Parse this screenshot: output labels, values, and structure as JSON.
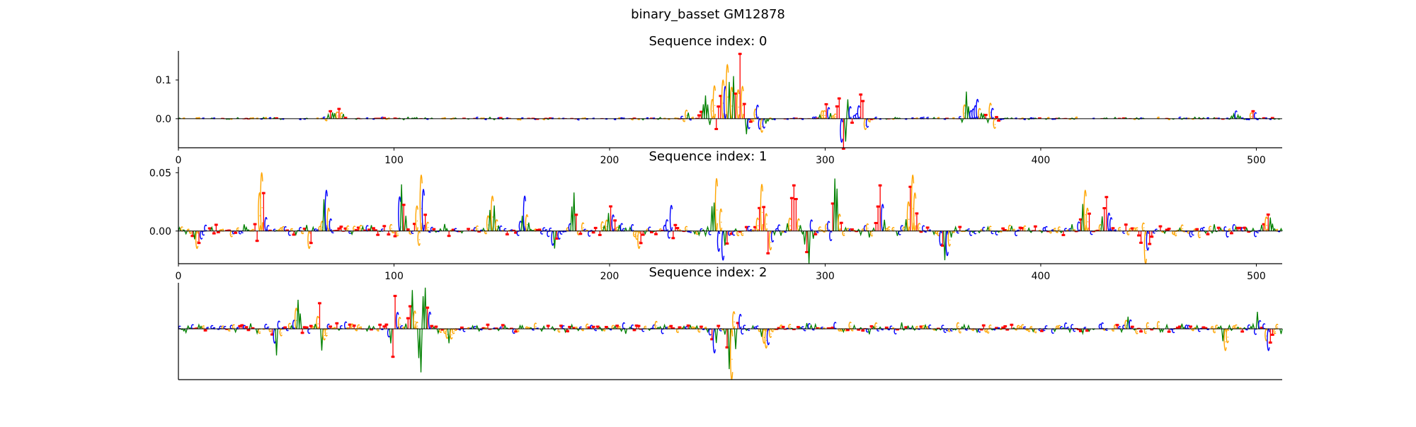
{
  "figure": {
    "title": "binary_basset GM12878"
  },
  "chart_data": [
    {
      "type": "bar",
      "title": "Sequence index: 0",
      "xlabel": "",
      "ylabel": "",
      "xlim": [
        0,
        512
      ],
      "ylim": [
        -0.075,
        0.175
      ],
      "xticks": [
        0,
        100,
        200,
        300,
        400,
        500
      ],
      "yticks": [
        0.0,
        0.1
      ],
      "ytick_labels": [
        "0.0",
        "0.1"
      ],
      "show_x_tick_labels": true,
      "grid": false,
      "peaks": [
        {
          "x": 70,
          "h": 0.022
        },
        {
          "x": 74,
          "h": 0.028
        },
        {
          "x": 235,
          "h": 0.022
        },
        {
          "x": 244,
          "h": 0.06
        },
        {
          "x": 248,
          "h": 0.085
        },
        {
          "x": 252,
          "h": 0.1
        },
        {
          "x": 254,
          "h": 0.14
        },
        {
          "x": 257,
          "h": 0.11
        },
        {
          "x": 260,
          "h": 0.17
        },
        {
          "x": 263,
          "h": -0.04
        },
        {
          "x": 268,
          "h": 0.035
        },
        {
          "x": 270,
          "h": -0.035
        },
        {
          "x": 300,
          "h": 0.04
        },
        {
          "x": 306,
          "h": 0.055
        },
        {
          "x": 308,
          "h": -0.08
        },
        {
          "x": 310,
          "h": 0.05
        },
        {
          "x": 316,
          "h": 0.065
        },
        {
          "x": 318,
          "h": -0.028
        },
        {
          "x": 365,
          "h": 0.07
        },
        {
          "x": 370,
          "h": 0.05
        },
        {
          "x": 376,
          "h": 0.04
        },
        {
          "x": 378,
          "h": -0.025
        },
        {
          "x": 490,
          "h": 0.02
        },
        {
          "x": 498,
          "h": 0.022
        }
      ]
    },
    {
      "type": "bar",
      "title": "Sequence index: 1",
      "xlabel": "",
      "ylabel": "",
      "xlim": [
        0,
        512
      ],
      "ylim": [
        -0.028,
        0.055
      ],
      "xticks": [
        0,
        100,
        200,
        300,
        400,
        500
      ],
      "yticks": [
        0.0,
        0.05
      ],
      "ytick_labels": [
        "0.00",
        "0.05"
      ],
      "show_x_tick_labels": true,
      "grid": false,
      "peaks": [
        {
          "x": 8,
          "h": -0.015
        },
        {
          "x": 38,
          "h": 0.05
        },
        {
          "x": 60,
          "h": -0.015
        },
        {
          "x": 68,
          "h": 0.035
        },
        {
          "x": 103,
          "h": 0.04
        },
        {
          "x": 112,
          "h": 0.048
        },
        {
          "x": 145,
          "h": 0.03
        },
        {
          "x": 160,
          "h": 0.03
        },
        {
          "x": 174,
          "h": -0.015
        },
        {
          "x": 183,
          "h": 0.033
        },
        {
          "x": 200,
          "h": 0.022
        },
        {
          "x": 213,
          "h": -0.015
        },
        {
          "x": 228,
          "h": 0.022
        },
        {
          "x": 249,
          "h": 0.045
        },
        {
          "x": 252,
          "h": -0.025
        },
        {
          "x": 270,
          "h": 0.04
        },
        {
          "x": 273,
          "h": -0.02
        },
        {
          "x": 285,
          "h": 0.04
        },
        {
          "x": 292,
          "h": -0.028
        },
        {
          "x": 304,
          "h": 0.045
        },
        {
          "x": 325,
          "h": 0.04
        },
        {
          "x": 340,
          "h": 0.048
        },
        {
          "x": 355,
          "h": -0.025
        },
        {
          "x": 420,
          "h": 0.035
        },
        {
          "x": 430,
          "h": 0.03
        },
        {
          "x": 448,
          "h": -0.028
        },
        {
          "x": 505,
          "h": 0.015
        }
      ]
    },
    {
      "type": "bar",
      "title": "Sequence index: 2",
      "xlabel": "",
      "ylabel": "",
      "xlim": [
        0,
        512
      ],
      "ylim": [
        -1.05,
        0.95
      ],
      "xticks": [],
      "yticks": [],
      "ytick_labels": [],
      "show_x_tick_labels": false,
      "grid": false,
      "peaks": [
        {
          "x": 45,
          "h": -0.55
        },
        {
          "x": 55,
          "h": 0.6
        },
        {
          "x": 65,
          "h": 0.55
        },
        {
          "x": 66,
          "h": -0.45
        },
        {
          "x": 99,
          "h": -0.6
        },
        {
          "x": 100,
          "h": 0.7
        },
        {
          "x": 108,
          "h": 0.8
        },
        {
          "x": 112,
          "h": -0.9
        },
        {
          "x": 114,
          "h": 0.85
        },
        {
          "x": 125,
          "h": -0.3
        },
        {
          "x": 248,
          "h": -0.5
        },
        {
          "x": 256,
          "h": -1.05
        },
        {
          "x": 260,
          "h": 0.3
        },
        {
          "x": 272,
          "h": -0.4
        },
        {
          "x": 440,
          "h": 0.25
        },
        {
          "x": 485,
          "h": -0.45
        },
        {
          "x": 500,
          "h": 0.35
        },
        {
          "x": 505,
          "h": -0.45
        }
      ]
    }
  ],
  "base_colors": {
    "A": "#008000",
    "C": "#0000ff",
    "G": "#ffa500",
    "T": "#ff0000"
  }
}
